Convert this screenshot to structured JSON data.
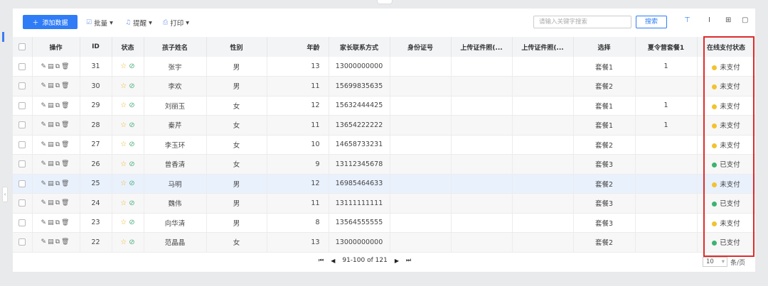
{
  "toolbar": {
    "add_label": "添加数据",
    "batch_label": "批量",
    "remind_label": "提醒",
    "print_label": "打印",
    "search_placeholder": "请输入关键字搜索",
    "search_button": "搜索"
  },
  "columns": [
    "操作",
    "ID",
    "状态",
    "孩子姓名",
    "性别",
    "年龄",
    "家长联系方式",
    "身份证号",
    "上传证件照(...",
    "上传证件照(...",
    "选择",
    "夏令营套餐1",
    "在线支付状态"
  ],
  "rows": [
    {
      "id": "31",
      "name": "张宇",
      "gender": "男",
      "age": "13",
      "phone": "13000000000",
      "idcard": "",
      "photo1": "",
      "photo2": "",
      "choice": "套餐1",
      "camp": "1",
      "pay": "未支付",
      "paid": false
    },
    {
      "id": "30",
      "name": "李欢",
      "gender": "男",
      "age": "11",
      "phone": "15699835635",
      "idcard": "",
      "photo1": "",
      "photo2": "",
      "choice": "套餐2",
      "camp": "",
      "pay": "未支付",
      "paid": false
    },
    {
      "id": "29",
      "name": "刘丽玉",
      "gender": "女",
      "age": "12",
      "phone": "15632444425",
      "idcard": "",
      "photo1": "",
      "photo2": "",
      "choice": "套餐1",
      "camp": "1",
      "pay": "未支付",
      "paid": false
    },
    {
      "id": "28",
      "name": "秦芹",
      "gender": "女",
      "age": "11",
      "phone": "13654222222",
      "idcard": "",
      "photo1": "",
      "photo2": "",
      "choice": "套餐1",
      "camp": "1",
      "pay": "未支付",
      "paid": false
    },
    {
      "id": "27",
      "name": "李玉环",
      "gender": "女",
      "age": "10",
      "phone": "14658733231",
      "idcard": "",
      "photo1": "",
      "photo2": "",
      "choice": "套餐2",
      "camp": "",
      "pay": "未支付",
      "paid": false
    },
    {
      "id": "26",
      "name": "曾香清",
      "gender": "女",
      "age": "9",
      "phone": "13112345678",
      "idcard": "",
      "photo1": "",
      "photo2": "",
      "choice": "套餐3",
      "camp": "",
      "pay": "已支付",
      "paid": true
    },
    {
      "id": "25",
      "name": "马明",
      "gender": "男",
      "age": "12",
      "phone": "16985464633",
      "idcard": "",
      "photo1": "",
      "photo2": "",
      "choice": "套餐2",
      "camp": "",
      "pay": "未支付",
      "paid": false
    },
    {
      "id": "24",
      "name": "魏伟",
      "gender": "男",
      "age": "11",
      "phone": "13111111111",
      "idcard": "",
      "photo1": "",
      "photo2": "",
      "choice": "套餐3",
      "camp": "",
      "pay": "已支付",
      "paid": true
    },
    {
      "id": "23",
      "name": "向华清",
      "gender": "男",
      "age": "8",
      "phone": "13564555555",
      "idcard": "",
      "photo1": "",
      "photo2": "",
      "choice": "套餐3",
      "camp": "",
      "pay": "未支付",
      "paid": false
    },
    {
      "id": "22",
      "name": "范晶晶",
      "gender": "女",
      "age": "13",
      "phone": "13000000000",
      "idcard": "",
      "photo1": "",
      "photo2": "",
      "choice": "套餐2",
      "camp": "",
      "pay": "已支付",
      "paid": true
    }
  ],
  "highlighted_row_id": "25",
  "colors": {
    "unpaid": "#f2c230",
    "paid": "#3cb371",
    "accent": "#2f7cf6",
    "highlight_box": "#e02b2b"
  },
  "pagination": {
    "range": "91-100 of 121",
    "page_size": "10",
    "per_page_label": "条/页"
  }
}
